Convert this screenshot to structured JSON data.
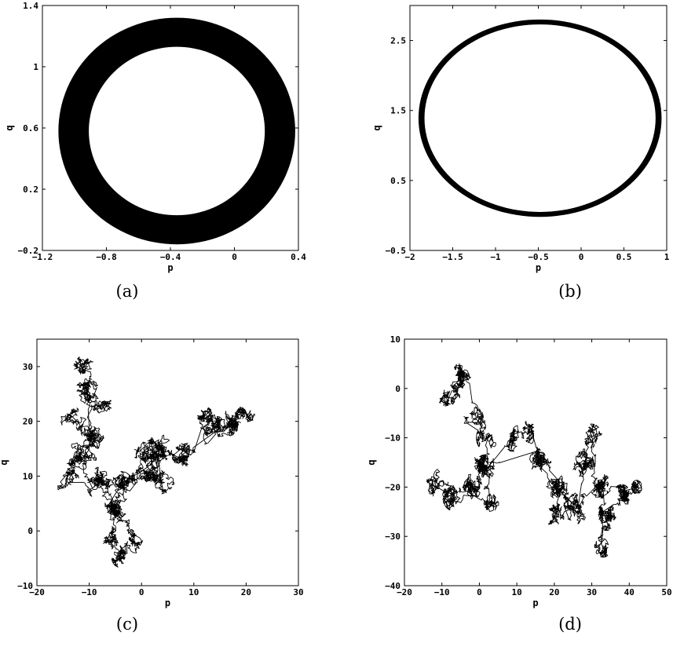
{
  "chart_data": [
    {
      "type": "area",
      "caption": "(a)",
      "xlabel": "p",
      "ylabel": "q",
      "xlim": [
        -1.2,
        0.4
      ],
      "ylim": [
        -0.2,
        1.4
      ],
      "xticks": [
        -1.2,
        -0.8,
        -0.4,
        0,
        0.4
      ],
      "yticks": [
        -0.2,
        0.2,
        0.6,
        1,
        1.4
      ],
      "xtick_labels": [
        "−1.2",
        "−0.8",
        "−0.4",
        "0",
        "0.4"
      ],
      "ytick_labels": [
        "−0.2",
        "0.2",
        "0.6",
        "1",
        "1.4"
      ],
      "grid": false,
      "annulus": {
        "center": [
          -0.36,
          0.58
        ],
        "inner_radius": [
          0.55,
          0.55
        ],
        "outer_radius": [
          0.74,
          0.74
        ]
      }
    },
    {
      "type": "area",
      "caption": "(b)",
      "xlabel": "p",
      "ylabel": "q",
      "xlim": [
        -2,
        1
      ],
      "ylim": [
        -0.5,
        3
      ],
      "xticks": [
        -2,
        -1.5,
        -1,
        -0.5,
        0,
        0.5,
        1
      ],
      "yticks": [
        -0.5,
        0.5,
        1.5,
        2.5
      ],
      "xtick_labels": [
        "−2",
        "−1.5",
        "−1",
        "−0.5",
        "0",
        "0.5",
        "1"
      ],
      "ytick_labels": [
        "−0.5",
        "0.5",
        "1.5",
        "2.5"
      ],
      "grid": false,
      "annulus": {
        "center": [
          -0.48,
          1.39
        ],
        "inner_radius": [
          1.35,
          1.34
        ],
        "outer_radius": [
          1.42,
          1.41
        ]
      }
    },
    {
      "type": "line",
      "caption": "(c)",
      "xlabel": "p",
      "ylabel": "q",
      "xlim": [
        -20,
        30
      ],
      "ylim": [
        -10,
        35
      ],
      "xticks": [
        -20,
        -10,
        0,
        10,
        20,
        30
      ],
      "yticks": [
        -10,
        0,
        10,
        20,
        30
      ],
      "xtick_labels": [
        "−20",
        "−10",
        "0",
        "10",
        "20",
        "30"
      ],
      "ytick_labels": [
        "−10",
        "0",
        "10",
        "20",
        "30"
      ],
      "grid": false,
      "clusters": [
        [
          -11,
          26,
          2.8
        ],
        [
          -13,
          20,
          2.8
        ],
        [
          -12,
          14,
          3.2
        ],
        [
          -9,
          17,
          2.8
        ],
        [
          -14,
          9,
          2
        ],
        [
          -8,
          9,
          2.2
        ],
        [
          -5,
          4,
          3.2
        ],
        [
          -6,
          -1,
          2.2
        ],
        [
          -2,
          -2,
          1.6
        ],
        [
          -4,
          -5,
          1.2
        ],
        [
          -3,
          9,
          2
        ],
        [
          1,
          11,
          2.2
        ],
        [
          3,
          15,
          2
        ],
        [
          0,
          14,
          1.6
        ],
        [
          4,
          9,
          1.6
        ],
        [
          8,
          14,
          1.6
        ],
        [
          14,
          19,
          2.6
        ],
        [
          17,
          20,
          2.6
        ],
        [
          20,
          21,
          1.4
        ],
        [
          12,
          21,
          1.2
        ],
        [
          -11,
          30,
          1.4
        ],
        [
          -8,
          22,
          2
        ]
      ],
      "path_order": [
        20,
        0,
        21,
        1,
        3,
        2,
        4,
        5,
        6,
        7,
        9,
        8,
        6,
        10,
        11,
        13,
        12,
        14,
        12,
        15,
        19,
        16,
        17,
        18,
        17,
        16,
        15,
        12,
        11,
        10,
        6,
        5,
        2,
        3,
        0
      ],
      "steps_per_cluster": 130,
      "step_size": 0.45,
      "seed": 7
    },
    {
      "type": "line",
      "caption": "(d)",
      "xlabel": "p",
      "ylabel": "q",
      "xlim": [
        -20,
        50
      ],
      "ylim": [
        -40,
        10
      ],
      "xticks": [
        -20,
        -10,
        0,
        10,
        20,
        30,
        40,
        50
      ],
      "yticks": [
        -40,
        -30,
        -20,
        -10,
        0,
        10
      ],
      "xtick_labels": [
        "−20",
        "−10",
        "0",
        "10",
        "20",
        "30",
        "40",
        "50"
      ],
      "ytick_labels": [
        "−40",
        "−30",
        "−20",
        "−10",
        "0",
        "10"
      ],
      "grid": false,
      "clusters": [
        [
          -5,
          2,
          2.4
        ],
        [
          -8,
          -2,
          2
        ],
        [
          -1,
          -6,
          2.4
        ],
        [
          2,
          -10,
          2
        ],
        [
          1,
          -16,
          3.2
        ],
        [
          -2,
          -20,
          2.4
        ],
        [
          3,
          -24,
          2
        ],
        [
          -7,
          -22,
          2
        ],
        [
          -12,
          -19,
          2.6
        ],
        [
          9,
          -10,
          2
        ],
        [
          14,
          -9,
          2
        ],
        [
          16,
          -15,
          2.2
        ],
        [
          21,
          -20,
          2.8
        ],
        [
          25,
          -24,
          3
        ],
        [
          28,
          -15,
          3.2
        ],
        [
          30,
          -10,
          2
        ],
        [
          32,
          -20,
          2.2
        ],
        [
          34,
          -26,
          2
        ],
        [
          33,
          -32,
          1.6
        ],
        [
          38,
          -22,
          1.8
        ],
        [
          42,
          -20,
          1
        ],
        [
          20,
          -26,
          2
        ]
      ],
      "path_order": [
        0,
        1,
        0,
        2,
        3,
        4,
        5,
        7,
        8,
        7,
        5,
        6,
        4,
        9,
        10,
        11,
        12,
        21,
        13,
        14,
        15,
        14,
        16,
        17,
        18,
        17,
        19,
        20,
        19,
        16,
        13,
        12,
        11,
        4
      ],
      "steps_per_cluster": 130,
      "step_size": 0.55,
      "seed": 23
    }
  ]
}
